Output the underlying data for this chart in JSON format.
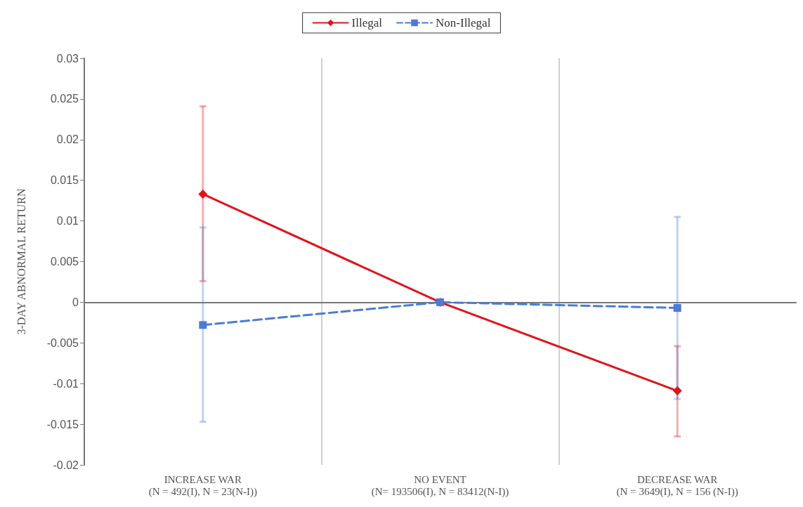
{
  "chart_data": {
    "type": "line",
    "ylabel": "3-DAY ABNORMAL RETURN",
    "categories": [
      "INCREASE WAR\n(N = 492(I), N = 23(N-I))",
      "NO EVENT\n(N= 193506(I), N = 83412(N-I))",
      "DECREASE WAR\n(N = 3649(I), N = 156 (N-I))"
    ],
    "series": [
      {
        "name": "Illegal",
        "color": "#e0141c",
        "marker": "diamond",
        "line_style": "solid",
        "values": [
          0.0133,
          0,
          -0.0109
        ],
        "errors": [
          [
            0.0026,
            0.0241
          ],
          null,
          [
            -0.0165,
            -0.0054
          ]
        ]
      },
      {
        "name": "Non-Illegal",
        "color": "#4a7bd6",
        "marker": "square",
        "line_style": "dashed",
        "values": [
          -0.0028,
          0,
          -0.0007
        ],
        "errors": [
          [
            -0.0147,
            0.0092
          ],
          null,
          [
            -0.0119,
            0.0105
          ]
        ]
      }
    ],
    "ylim": [
      -0.02,
      0.03
    ],
    "yticks": [
      -0.02,
      -0.015,
      -0.01,
      -0.005,
      0,
      0.005,
      0.01,
      0.015,
      0.02,
      0.025,
      0.03
    ],
    "grid": "x",
    "legend": "top"
  }
}
